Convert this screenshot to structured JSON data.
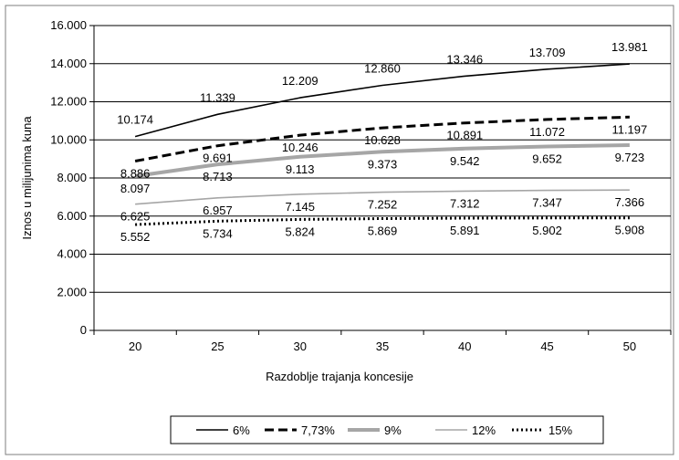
{
  "chart_data": {
    "type": "line",
    "title": "",
    "xlabel": "Razdoblje trajanja koncesije",
    "ylabel": "Iznos u milijunima kuna",
    "categories": [
      "20",
      "25",
      "30",
      "35",
      "40",
      "45",
      "50"
    ],
    "ylim": [
      0,
      16000
    ],
    "yticks": [
      "0",
      "2.000",
      "4.000",
      "6.000",
      "8.000",
      "10.000",
      "12.000",
      "14.000",
      "16.000"
    ],
    "grid": true,
    "legend_position": "bottom",
    "series": [
      {
        "name": "6%",
        "values": [
          10174,
          11339,
          12209,
          12860,
          13346,
          13709,
          13981
        ],
        "labels": [
          "10.174",
          "11.339",
          "12.209",
          "12.860",
          "13.346",
          "13.709",
          "13.981"
        ],
        "color": "#000000",
        "style": "solid-thin"
      },
      {
        "name": "7,73%",
        "values": [
          8886,
          9691,
          10246,
          10628,
          10891,
          11072,
          11197
        ],
        "labels": [
          "8.886",
          "9.691",
          "10.246",
          "10.628",
          "10.891",
          "11.072",
          "11.197"
        ],
        "color": "#000000",
        "style": "dashed-thick"
      },
      {
        "name": "9%",
        "values": [
          8097,
          8713,
          9113,
          9373,
          9542,
          9652,
          9723
        ],
        "labels": [
          "8.097",
          "8.713",
          "9.113",
          "9.373",
          "9.542",
          "9.652",
          "9.723"
        ],
        "color": "#a6a6a6",
        "style": "solid-thick"
      },
      {
        "name": "12%",
        "values": [
          6625,
          6957,
          7145,
          7252,
          7312,
          7347,
          7366
        ],
        "labels": [
          "6.625",
          "6.957",
          "7.145",
          "7.252",
          "7.312",
          "7.347",
          "7.366"
        ],
        "color": "#a6a6a6",
        "style": "solid-thin"
      },
      {
        "name": "15%",
        "values": [
          5552,
          5734,
          5824,
          5869,
          5891,
          5902,
          5908
        ],
        "labels": [
          "5.552",
          "5.734",
          "5.824",
          "5.869",
          "5.891",
          "5.902",
          "5.908"
        ],
        "color": "#000000",
        "style": "dotted"
      }
    ]
  }
}
